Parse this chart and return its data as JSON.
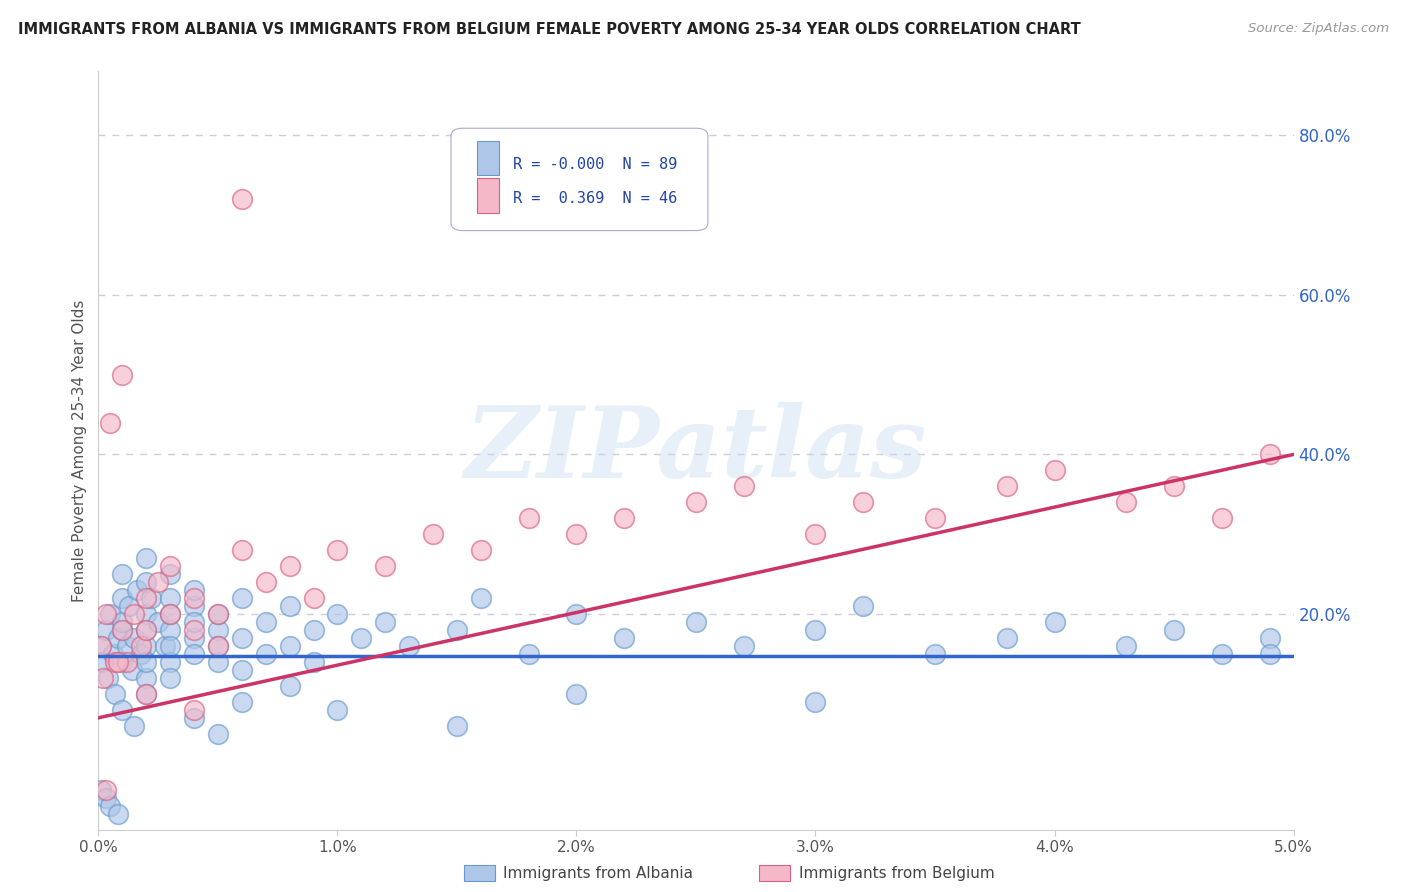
{
  "title": "IMMIGRANTS FROM ALBANIA VS IMMIGRANTS FROM BELGIUM FEMALE POVERTY AMONG 25-34 YEAR OLDS CORRELATION CHART",
  "source": "Source: ZipAtlas.com",
  "ylabel": "Female Poverty Among 25-34 Year Olds",
  "xlabel": "",
  "xlim": [
    0.0,
    0.05
  ],
  "ylim": [
    -0.07,
    0.88
  ],
  "xticks": [
    0.0,
    0.01,
    0.02,
    0.03,
    0.04,
    0.05
  ],
  "xtick_labels": [
    "0.0%",
    "1.0%",
    "2.0%",
    "3.0%",
    "4.0%",
    "5.0%"
  ],
  "ytick_labels_right": [
    "80.0%",
    "60.0%",
    "40.0%",
    "20.0%"
  ],
  "ytick_vals_right": [
    0.8,
    0.6,
    0.4,
    0.2
  ],
  "albania_color": "#aec6e8",
  "albania_edge": "#6699cc",
  "belgium_color": "#f5b8c8",
  "belgium_edge": "#d96080",
  "albania_line_color": "#3366cc",
  "belgium_line_color": "#cc3366",
  "watermark": "ZIPatlas",
  "watermark_color_zip": "#c5d8ee",
  "watermark_color_atlas": "#b8cce0",
  "legend_r_albania": "-0.000",
  "legend_n_albania": "89",
  "legend_r_belgium": "0.369",
  "legend_n_belgium": "46",
  "background_color": "#ffffff",
  "grid_color": "#ccccdd",
  "albania_line_y0": 0.148,
  "albania_line_y1": 0.148,
  "belgium_line_y0": 0.07,
  "belgium_line_y1": 0.4,
  "albania_x": [
    0.0001,
    0.0002,
    0.0003,
    0.0004,
    0.0005,
    0.0006,
    0.0007,
    0.0008,
    0.001,
    0.001,
    0.001,
    0.001,
    0.001,
    0.0012,
    0.0013,
    0.0014,
    0.0015,
    0.0016,
    0.0018,
    0.002,
    0.002,
    0.002,
    0.002,
    0.002,
    0.002,
    0.002,
    0.0022,
    0.0025,
    0.0028,
    0.003,
    0.003,
    0.003,
    0.003,
    0.003,
    0.003,
    0.004,
    0.004,
    0.004,
    0.004,
    0.004,
    0.005,
    0.005,
    0.005,
    0.005,
    0.006,
    0.006,
    0.006,
    0.007,
    0.007,
    0.008,
    0.008,
    0.009,
    0.009,
    0.01,
    0.011,
    0.012,
    0.013,
    0.015,
    0.016,
    0.018,
    0.02,
    0.022,
    0.025,
    0.027,
    0.03,
    0.032,
    0.035,
    0.038,
    0.04,
    0.043,
    0.045,
    0.047,
    0.049,
    0.0001,
    0.0003,
    0.0005,
    0.0008,
    0.001,
    0.0015,
    0.002,
    0.003,
    0.004,
    0.005,
    0.006,
    0.008,
    0.01,
    0.015,
    0.02,
    0.03,
    0.049
  ],
  "albania_y": [
    0.16,
    0.14,
    0.18,
    0.12,
    0.2,
    0.15,
    0.1,
    0.17,
    0.22,
    0.25,
    0.18,
    0.14,
    0.19,
    0.16,
    0.21,
    0.13,
    0.17,
    0.23,
    0.15,
    0.27,
    0.2,
    0.16,
    0.12,
    0.24,
    0.18,
    0.14,
    0.22,
    0.19,
    0.16,
    0.25,
    0.18,
    0.22,
    0.14,
    0.2,
    0.16,
    0.21,
    0.17,
    0.19,
    0.23,
    0.15,
    0.18,
    0.14,
    0.2,
    0.16,
    0.22,
    0.17,
    0.13,
    0.19,
    0.15,
    0.21,
    0.16,
    0.18,
    0.14,
    0.2,
    0.17,
    0.19,
    0.16,
    0.18,
    0.22,
    0.15,
    0.2,
    0.17,
    0.19,
    0.16,
    0.18,
    0.21,
    0.15,
    0.17,
    0.19,
    0.16,
    0.18,
    0.15,
    0.17,
    -0.02,
    -0.03,
    -0.04,
    -0.05,
    0.08,
    0.06,
    0.1,
    0.12,
    0.07,
    0.05,
    0.09,
    0.11,
    0.08,
    0.06,
    0.1,
    0.09,
    0.15
  ],
  "belgium_x": [
    0.0001,
    0.0002,
    0.0003,
    0.0005,
    0.0007,
    0.001,
    0.001,
    0.0012,
    0.0015,
    0.0018,
    0.002,
    0.002,
    0.0025,
    0.003,
    0.003,
    0.004,
    0.004,
    0.005,
    0.005,
    0.006,
    0.006,
    0.007,
    0.008,
    0.009,
    0.01,
    0.012,
    0.014,
    0.016,
    0.018,
    0.02,
    0.022,
    0.025,
    0.027,
    0.03,
    0.032,
    0.035,
    0.038,
    0.04,
    0.043,
    0.045,
    0.047,
    0.049,
    0.0003,
    0.0008,
    0.002,
    0.004
  ],
  "belgium_y": [
    0.16,
    0.12,
    0.2,
    0.44,
    0.14,
    0.18,
    0.5,
    0.14,
    0.2,
    0.16,
    0.22,
    0.18,
    0.24,
    0.2,
    0.26,
    0.18,
    0.22,
    0.16,
    0.2,
    0.28,
    0.72,
    0.24,
    0.26,
    0.22,
    0.28,
    0.26,
    0.3,
    0.28,
    0.32,
    0.3,
    0.32,
    0.34,
    0.36,
    0.3,
    0.34,
    0.32,
    0.36,
    0.38,
    0.34,
    0.36,
    0.32,
    0.4,
    -0.02,
    0.14,
    0.1,
    0.08
  ]
}
